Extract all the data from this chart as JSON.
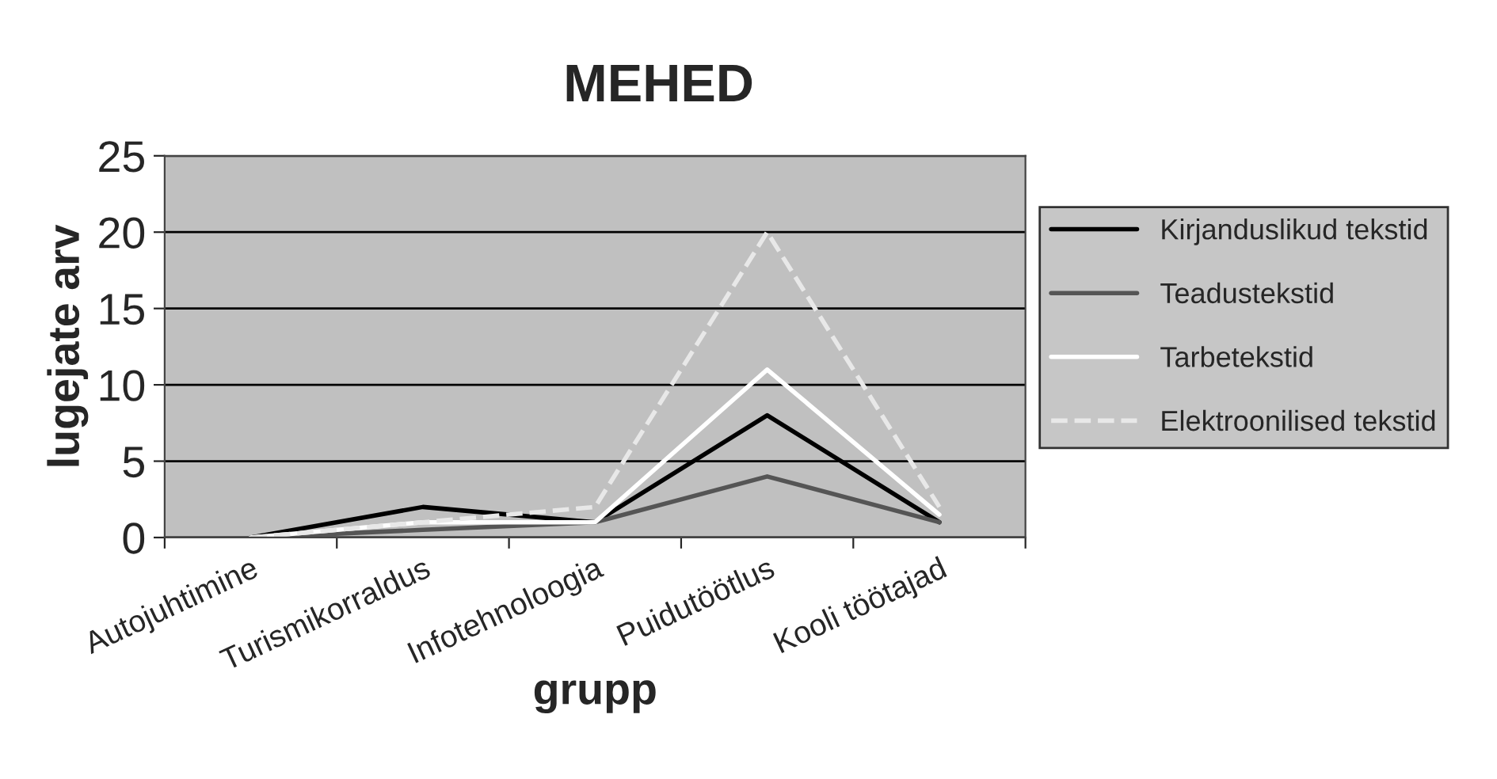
{
  "chart_data": {
    "type": "line",
    "title": "MEHED",
    "xlabel": "grupp",
    "ylabel": "lugejate arv",
    "categories": [
      "Autojuhtimine",
      "Turismikorraldus",
      "Infotehnoloogia",
      "Puidutöötlus",
      "Kooli töötajad"
    ],
    "series": [
      {
        "name": "Kirjanduslikud tekstid",
        "color": "#000000",
        "values": [
          0,
          2,
          1,
          8,
          1
        ]
      },
      {
        "name": "Teadustekstid",
        "color": "#555555",
        "values": [
          0,
          0.5,
          1,
          4,
          1
        ]
      },
      {
        "name": "Tarbetekstid",
        "color": "#ffffff",
        "values": [
          0,
          1,
          1,
          11,
          1.5
        ]
      },
      {
        "name": "Elektroonilised tekstid",
        "color": "#e8e8e8",
        "values": [
          0,
          1,
          2,
          20,
          2
        ],
        "line_style": "dashed"
      }
    ],
    "ylim": [
      0,
      25
    ],
    "yticks": [
      0,
      5,
      10,
      15,
      20,
      25
    ],
    "grid": "y",
    "legend": "right",
    "marker": "none"
  }
}
